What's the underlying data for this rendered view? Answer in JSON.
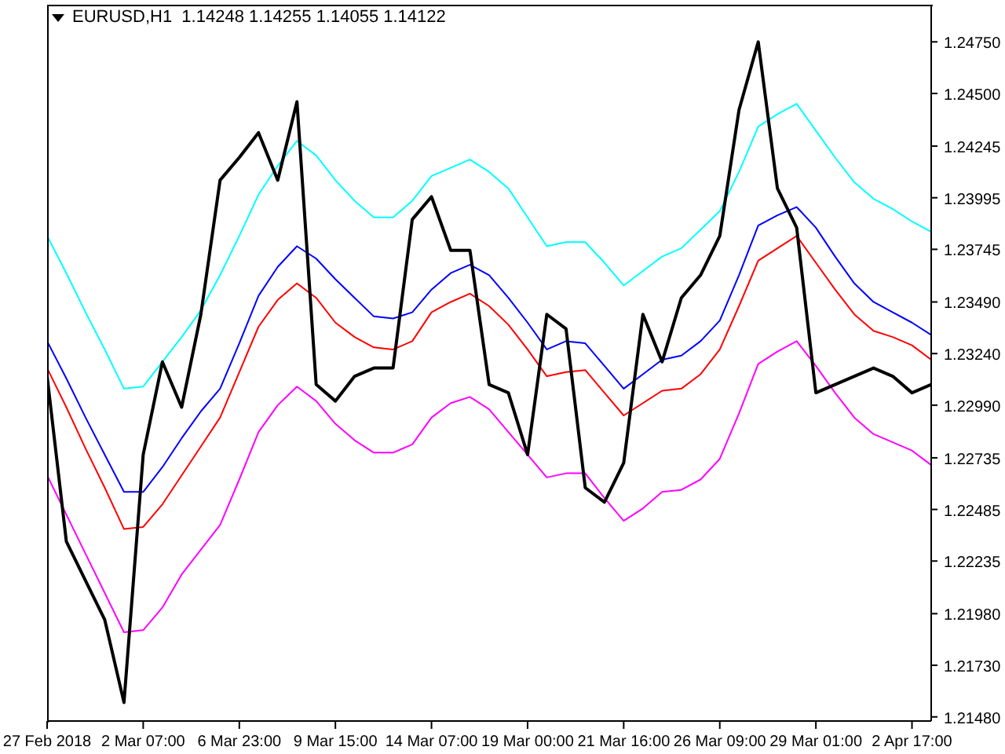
{
  "chart_data": {
    "type": "line",
    "title": "EURUSD,H1  1.14248 1.14255 1.14055 1.14122",
    "marker": "none",
    "grid": false,
    "categories": [
      "27 Feb 2018",
      null,
      null,
      null,
      null,
      "2 Mar 07:00",
      null,
      null,
      null,
      null,
      "6 Mar 23:00",
      null,
      null,
      null,
      null,
      "9 Mar 15:00",
      null,
      null,
      null,
      null,
      "14 Mar 07:00",
      null,
      null,
      null,
      null,
      "19 Mar 00:00",
      null,
      null,
      null,
      null,
      "21 Mar 16:00",
      null,
      null,
      null,
      null,
      "26 Mar 09:00",
      null,
      null,
      null,
      null,
      "29 Mar 01:00",
      null,
      null,
      null,
      null,
      "2 Apr 17:00",
      null
    ],
    "ylim": [
      1.2146,
      1.2493
    ],
    "yticks": [
      {
        "value": 1.2475,
        "label": "1.24750"
      },
      {
        "value": 1.245,
        "label": "1.24500"
      },
      {
        "value": 1.24245,
        "label": "1.24245"
      },
      {
        "value": 1.23995,
        "label": "1.23995"
      },
      {
        "value": 1.23745,
        "label": "1.23745"
      },
      {
        "value": 1.2349,
        "label": "1.23490"
      },
      {
        "value": 1.2324,
        "label": "1.23240"
      },
      {
        "value": 1.2299,
        "label": "1.22990"
      },
      {
        "value": 1.22735,
        "label": "1.22735"
      },
      {
        "value": 1.22485,
        "label": "1.22485"
      },
      {
        "value": 1.22235,
        "label": "1.22235"
      },
      {
        "value": 1.2198,
        "label": "1.21980"
      },
      {
        "value": 1.2173,
        "label": "1.21730"
      },
      {
        "value": 1.2148,
        "label": "1.21480"
      }
    ],
    "series": [
      {
        "color": "#00ffff",
        "values": [
          1.2381,
          1.2363,
          1.2344,
          1.2326,
          1.2307,
          1.2308,
          1.232,
          1.2332,
          1.2345,
          1.2362,
          1.2381,
          1.2401,
          1.2415,
          1.2427,
          1.242,
          1.2408,
          1.2398,
          1.239,
          1.239,
          1.2398,
          1.241,
          1.2414,
          1.2418,
          1.2412,
          1.2404,
          1.239,
          1.2376,
          1.2378,
          1.2378,
          1.2368,
          1.2357,
          1.2364,
          1.2371,
          1.2375,
          1.2384,
          1.2393,
          1.2412,
          1.2434,
          1.244,
          1.2445,
          1.2432,
          1.2419,
          1.2407,
          1.2399,
          1.2394,
          1.2388,
          1.2383
        ]
      },
      {
        "color": "#0000ff",
        "values": [
          1.233,
          1.2312,
          1.2293,
          1.2275,
          1.2257,
          1.2257,
          1.2269,
          1.2283,
          1.2296,
          1.2307,
          1.2329,
          1.2352,
          1.2366,
          1.2376,
          1.237,
          1.236,
          1.2351,
          1.2342,
          1.2341,
          1.2344,
          1.2355,
          1.2363,
          1.2367,
          1.2362,
          1.2351,
          1.2339,
          1.2326,
          1.233,
          1.2329,
          1.2318,
          1.2307,
          1.2314,
          1.2321,
          1.2323,
          1.233,
          1.234,
          1.2362,
          1.2386,
          1.2391,
          1.2395,
          1.2385,
          1.2371,
          1.2358,
          1.2349,
          1.2344,
          1.2339,
          1.2333
        ]
      },
      {
        "color": "#ff0000",
        "values": [
          1.2317,
          1.2298,
          1.2278,
          1.2259,
          1.2239,
          1.224,
          1.2251,
          1.2265,
          1.2279,
          1.2293,
          1.2315,
          1.2337,
          1.235,
          1.2358,
          1.2351,
          1.2339,
          1.2332,
          1.2327,
          1.2326,
          1.233,
          1.2344,
          1.2349,
          1.2353,
          1.2347,
          1.2338,
          1.2326,
          1.2313,
          1.2315,
          1.2316,
          1.2305,
          1.2294,
          1.23,
          1.2306,
          1.2307,
          1.2314,
          1.2326,
          1.2347,
          1.2369,
          1.2375,
          1.2381,
          1.2368,
          1.2355,
          1.2343,
          1.2335,
          1.2332,
          1.2328,
          1.2321
        ]
      },
      {
        "color": "#ff00ff",
        "values": [
          1.2265,
          1.2246,
          1.2227,
          1.2208,
          1.2189,
          1.219,
          1.2201,
          1.2217,
          1.2229,
          1.2241,
          1.2263,
          1.2286,
          1.2299,
          1.2308,
          1.2301,
          1.229,
          1.2282,
          1.2276,
          1.2276,
          1.228,
          1.2293,
          1.23,
          1.2303,
          1.2297,
          1.2286,
          1.2275,
          1.2264,
          1.2266,
          1.2266,
          1.2254,
          1.2243,
          1.2249,
          1.2257,
          1.2258,
          1.2263,
          1.2273,
          1.2295,
          1.2319,
          1.2325,
          1.233,
          1.2318,
          1.2305,
          1.2293,
          1.2285,
          1.2281,
          1.2277,
          1.227
        ]
      },
      {
        "color": "#000000",
        "values": [
          1.2313,
          1.2233,
          1.2214,
          1.2195,
          1.2155,
          1.2275,
          1.232,
          1.2298,
          1.2343,
          1.2408,
          1.2419,
          1.2431,
          1.2408,
          1.2446,
          1.2309,
          1.2301,
          1.2313,
          1.2317,
          1.2317,
          1.2389,
          1.24,
          1.2374,
          1.2374,
          1.2309,
          1.2305,
          1.2275,
          1.2343,
          1.2336,
          1.2259,
          1.2252,
          1.2271,
          1.2343,
          1.232,
          1.2351,
          1.2362,
          1.2381,
          1.2442,
          1.2475,
          1.2404,
          1.2385,
          1.2305,
          1.2309,
          1.2313,
          1.2317,
          1.2313,
          1.2305,
          1.2309
        ]
      }
    ]
  }
}
